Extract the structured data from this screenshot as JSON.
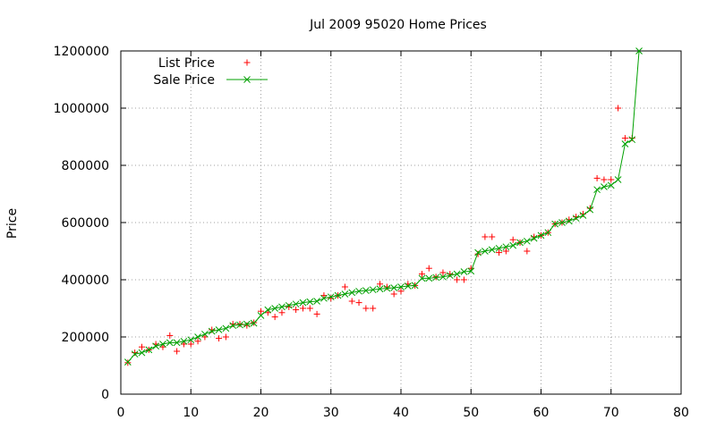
{
  "chart_data": {
    "type": "scatter",
    "title": "Jul 2009 95020 Home Prices",
    "xlabel": "",
    "ylabel": "Price",
    "xlim": [
      0,
      80
    ],
    "ylim": [
      0,
      1200000
    ],
    "xticks": [
      0,
      10,
      20,
      30,
      40,
      50,
      60,
      70,
      80
    ],
    "yticks": [
      0,
      200000,
      400000,
      600000,
      800000,
      1000000,
      1200000
    ],
    "grid": true,
    "legend_position": "top-left",
    "series": [
      {
        "name": "List Price",
        "marker": "plus",
        "line": false,
        "color": "#ff0000",
        "x": [
          1,
          2,
          3,
          4,
          5,
          6,
          7,
          8,
          9,
          10,
          11,
          12,
          13,
          14,
          15,
          16,
          17,
          18,
          19,
          20,
          21,
          22,
          23,
          24,
          25,
          26,
          27,
          28,
          29,
          30,
          31,
          32,
          33,
          34,
          35,
          36,
          37,
          38,
          39,
          40,
          41,
          42,
          43,
          44,
          45,
          46,
          47,
          48,
          49,
          50,
          51,
          52,
          53,
          54,
          55,
          56,
          57,
          58,
          59,
          60,
          61,
          62,
          63,
          64,
          65,
          66,
          67,
          68,
          69,
          70,
          71,
          72,
          73
        ],
        "y": [
          110000,
          145000,
          165000,
          155000,
          175000,
          165000,
          205000,
          150000,
          175000,
          175000,
          185000,
          200000,
          225000,
          195000,
          200000,
          245000,
          245000,
          240000,
          250000,
          290000,
          285000,
          270000,
          285000,
          305000,
          295000,
          300000,
          300000,
          280000,
          345000,
          335000,
          345000,
          375000,
          325000,
          320000,
          300000,
          300000,
          385000,
          375000,
          350000,
          360000,
          385000,
          380000,
          420000,
          440000,
          410000,
          425000,
          420000,
          400000,
          400000,
          440000,
          490000,
          550000,
          550000,
          495000,
          500000,
          540000,
          530000,
          500000,
          550000,
          555000,
          565000,
          595000,
          600000,
          610000,
          620000,
          630000,
          650000,
          755000,
          750000,
          750000,
          1000000,
          895000,
          895000
        ]
      },
      {
        "name": "Sale Price",
        "marker": "cross",
        "line": true,
        "color": "#00a000",
        "x": [
          1,
          2,
          3,
          4,
          5,
          6,
          7,
          8,
          9,
          10,
          11,
          12,
          13,
          14,
          15,
          16,
          17,
          18,
          19,
          20,
          21,
          22,
          23,
          24,
          25,
          26,
          27,
          28,
          29,
          30,
          31,
          32,
          33,
          34,
          35,
          36,
          37,
          38,
          39,
          40,
          41,
          42,
          43,
          44,
          45,
          46,
          47,
          48,
          49,
          50,
          51,
          52,
          53,
          54,
          55,
          56,
          57,
          58,
          59,
          60,
          61,
          62,
          63,
          64,
          65,
          66,
          67,
          68,
          69,
          70,
          71,
          72,
          73,
          74
        ],
        "y": [
          112000,
          140000,
          145000,
          155000,
          168000,
          175000,
          180000,
          180000,
          185000,
          190000,
          200000,
          210000,
          220000,
          225000,
          230000,
          240000,
          242000,
          245000,
          248000,
          275000,
          295000,
          300000,
          305000,
          310000,
          315000,
          320000,
          323000,
          325000,
          335000,
          340000,
          345000,
          350000,
          355000,
          360000,
          362000,
          365000,
          368000,
          370000,
          372000,
          375000,
          378000,
          380000,
          405000,
          405000,
          408000,
          410000,
          415000,
          420000,
          428000,
          430000,
          495000,
          500000,
          505000,
          510000,
          515000,
          520000,
          530000,
          535000,
          545000,
          555000,
          565000,
          595000,
          600000,
          605000,
          615000,
          625000,
          645000,
          715000,
          725000,
          730000,
          750000,
          875000,
          890000,
          1200000
        ]
      }
    ]
  }
}
